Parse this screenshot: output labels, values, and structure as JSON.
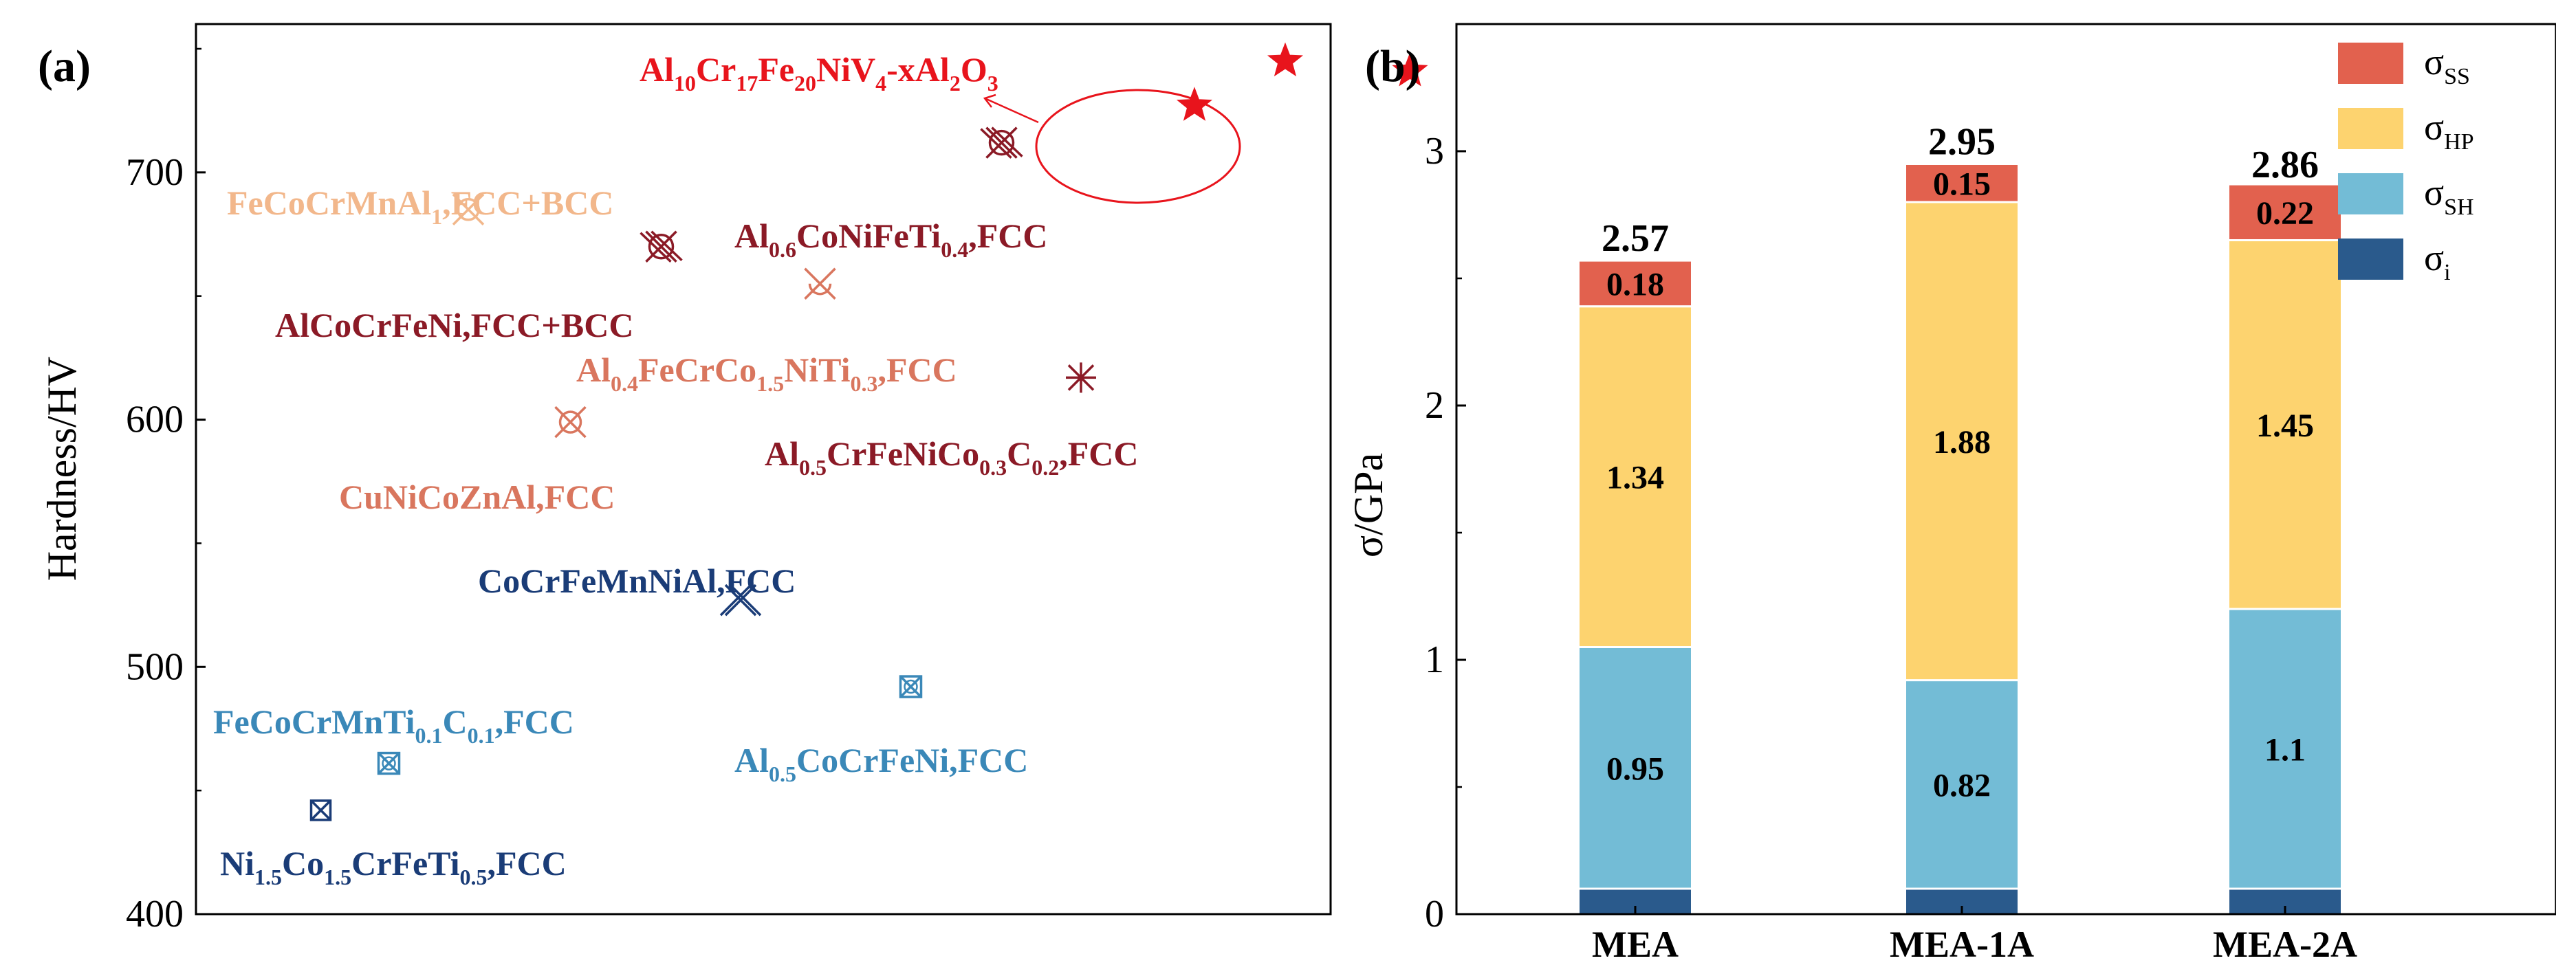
{
  "colors": {
    "red": "#e8141c",
    "darkred": "#8b1a26",
    "peach": "#f2b78b",
    "salmon": "#d9765e",
    "navy": "#1a3c77",
    "steel": "#3a88b8",
    "ss": "#e2614e",
    "hp": "#fdd36f",
    "sh": "#73bcd6",
    "i": "#2a5a8c"
  },
  "chart_data": [
    {
      "type": "scatter",
      "panel_label": "(a)",
      "ylabel": "Hardness/HV",
      "ylim": [
        400,
        760
      ],
      "yticks": [
        400,
        500,
        600,
        700
      ],
      "ytick_labels": [
        "400",
        "500",
        "600",
        "700"
      ],
      "x_axis_ticks": "none",
      "groups": [
        {
          "name": "Al10Cr17Fe20NiV4-xAl2O3",
          "label_main": "Al",
          "label_segs": [
            [
              "Al",
              ""
            ],
            [
              "10",
              "sub"
            ],
            [
              "Cr",
              ""
            ],
            [
              "17",
              "sub"
            ],
            [
              "Fe",
              ""
            ],
            [
              "20",
              "sub"
            ],
            [
              "NiV",
              ""
            ],
            [
              "4",
              "sub"
            ],
            [
              "-xAl",
              ""
            ],
            [
              "2",
              "sub"
            ],
            [
              "O",
              ""
            ],
            [
              "3",
              "sub"
            ]
          ],
          "marker": "star",
          "color": "red",
          "points": [
            [
              0.88,
              727
            ],
            [
              0.96,
              745
            ],
            [
              1.07,
              741
            ]
          ]
        },
        {
          "name": "FeCoCrMnAl1,FCC+BCC",
          "label_segs": [
            [
              "FeCoCrMnAl",
              ""
            ],
            [
              "1",
              "sub"
            ],
            [
              ",FCC+BCC",
              ""
            ]
          ],
          "marker": "x-open-circle",
          "color": "peach",
          "points": [
            [
              0.24,
              685
            ]
          ]
        },
        {
          "name": "Al0.6CoNiFeTi0.4,FCC",
          "label_segs": [
            [
              "Al",
              ""
            ],
            [
              "0.6",
              "sub"
            ],
            [
              "CoNiFeTi",
              ""
            ],
            [
              "0.4",
              "sub"
            ],
            [
              ",FCC",
              ""
            ]
          ],
          "marker": "hash-circle",
          "color": "darkred",
          "points": [
            [
              0.71,
              712
            ]
          ]
        },
        {
          "name": "AlCoCrFeNi,FCC+BCC",
          "label_segs": [
            [
              "AlCoCrFeNi,FCC+BCC",
              ""
            ]
          ],
          "marker": "hash-circle",
          "color": "darkred",
          "points": [
            [
              0.41,
              670
            ]
          ]
        },
        {
          "name": "Al0.4FeCrCo1.5NiTi0.3,FCC",
          "label_segs": [
            [
              "Al",
              ""
            ],
            [
              "0.4",
              "sub"
            ],
            [
              "FeCrCo",
              ""
            ],
            [
              "1.5",
              "sub"
            ],
            [
              "NiTi",
              ""
            ],
            [
              "0.3",
              "sub"
            ],
            [
              ",FCC",
              ""
            ]
          ],
          "marker": "x-half",
          "color": "salmon",
          "points": [
            [
              0.55,
              655
            ]
          ]
        },
        {
          "name": "Al0.5CrFeNiCo0.3C0.2,FCC",
          "label_segs": [
            [
              "Al",
              ""
            ],
            [
              "0.5",
              "sub"
            ],
            [
              "CrFeNiCo",
              ""
            ],
            [
              "0.3",
              "sub"
            ],
            [
              "C",
              ""
            ],
            [
              "0.2",
              "sub"
            ],
            [
              ",FCC",
              ""
            ]
          ],
          "marker": "asterisk",
          "color": "darkred",
          "points": [
            [
              0.78,
              617
            ]
          ]
        },
        {
          "name": "CuNiCoZnAl,FCC",
          "label_segs": [
            [
              "CuNiCoZnAl,FCC",
              ""
            ]
          ],
          "marker": "x-open-circle",
          "color": "salmon",
          "points": [
            [
              0.33,
              599
            ]
          ]
        },
        {
          "name": "CoCrFeMnNiAl,FCC",
          "label_segs": [
            [
              "CoCrFeMnNiAl,FCC",
              ""
            ]
          ],
          "marker": "x-double",
          "color": "navy",
          "points": [
            [
              0.48,
              527
            ]
          ]
        },
        {
          "name": "Al0.5CoCrFeNi,FCC",
          "label_segs": [
            [
              "Al",
              ""
            ],
            [
              "0.5",
              "sub"
            ],
            [
              "CoCrFeNi,FCC",
              ""
            ]
          ],
          "marker": "x-square-circle",
          "color": "steel",
          "points": [
            [
              0.63,
              492
            ]
          ]
        },
        {
          "name": "FeCoCrMnTi0.1C0.1,FCC",
          "label_segs": [
            [
              "FeCoCrMnTi",
              ""
            ],
            [
              "0.1",
              "sub"
            ],
            [
              "C",
              ""
            ],
            [
              "0.1",
              "sub"
            ],
            [
              ",FCC",
              ""
            ]
          ],
          "marker": "x-square-circle",
          "color": "steel",
          "points": [
            [
              0.17,
              461
            ]
          ]
        },
        {
          "name": "Ni1.5Co1.5CrFeTi0.5,FCC",
          "label_segs": [
            [
              "Ni",
              ""
            ],
            [
              "1.5",
              "sub"
            ],
            [
              "Co",
              ""
            ],
            [
              "1.5",
              "sub"
            ],
            [
              "CrFeTi",
              ""
            ],
            [
              "0.5",
              "sub"
            ],
            [
              ",FCC",
              ""
            ]
          ],
          "marker": "x-square",
          "color": "navy",
          "points": [
            [
              0.11,
              442
            ]
          ]
        }
      ]
    },
    {
      "type": "bar",
      "stacked": true,
      "panel_label": "(b)",
      "ylabel": "σ/GPa",
      "ylim": [
        0,
        3.5
      ],
      "yticks": [
        0,
        1,
        2,
        3
      ],
      "ytick_labels": [
        "0",
        "1",
        "2",
        "3"
      ],
      "categories": [
        "MEA",
        "MEA-1A",
        "MEA-2A"
      ],
      "series": [
        {
          "name": "σi",
          "legend_base": "σ",
          "legend_sub": "i",
          "color": "i",
          "values": [
            0.1,
            0.1,
            0.1
          ],
          "labels": [
            "",
            "",
            ""
          ]
        },
        {
          "name": "σSH",
          "legend_base": "σ",
          "legend_sub": "SH",
          "color": "sh",
          "values": [
            0.95,
            0.82,
            1.1
          ],
          "labels": [
            "0.95",
            "0.82",
            "1.1"
          ]
        },
        {
          "name": "σHP",
          "legend_base": "σ",
          "legend_sub": "HP",
          "color": "hp",
          "values": [
            1.34,
            1.88,
            1.45
          ],
          "labels": [
            "1.34",
            "1.88",
            "1.45"
          ]
        },
        {
          "name": "σSS",
          "legend_base": "σ",
          "legend_sub": "SS",
          "color": "ss",
          "values": [
            0.18,
            0.15,
            0.22
          ],
          "labels": [
            "0.18",
            "0.15",
            "0.22"
          ]
        }
      ],
      "totals": [
        2.57,
        2.95,
        2.86
      ],
      "total_labels": [
        "2.57",
        "2.95",
        "2.86"
      ],
      "legend_order": [
        "σSS",
        "σHP",
        "σSH",
        "σi"
      ],
      "legend_position": "top-right"
    }
  ]
}
